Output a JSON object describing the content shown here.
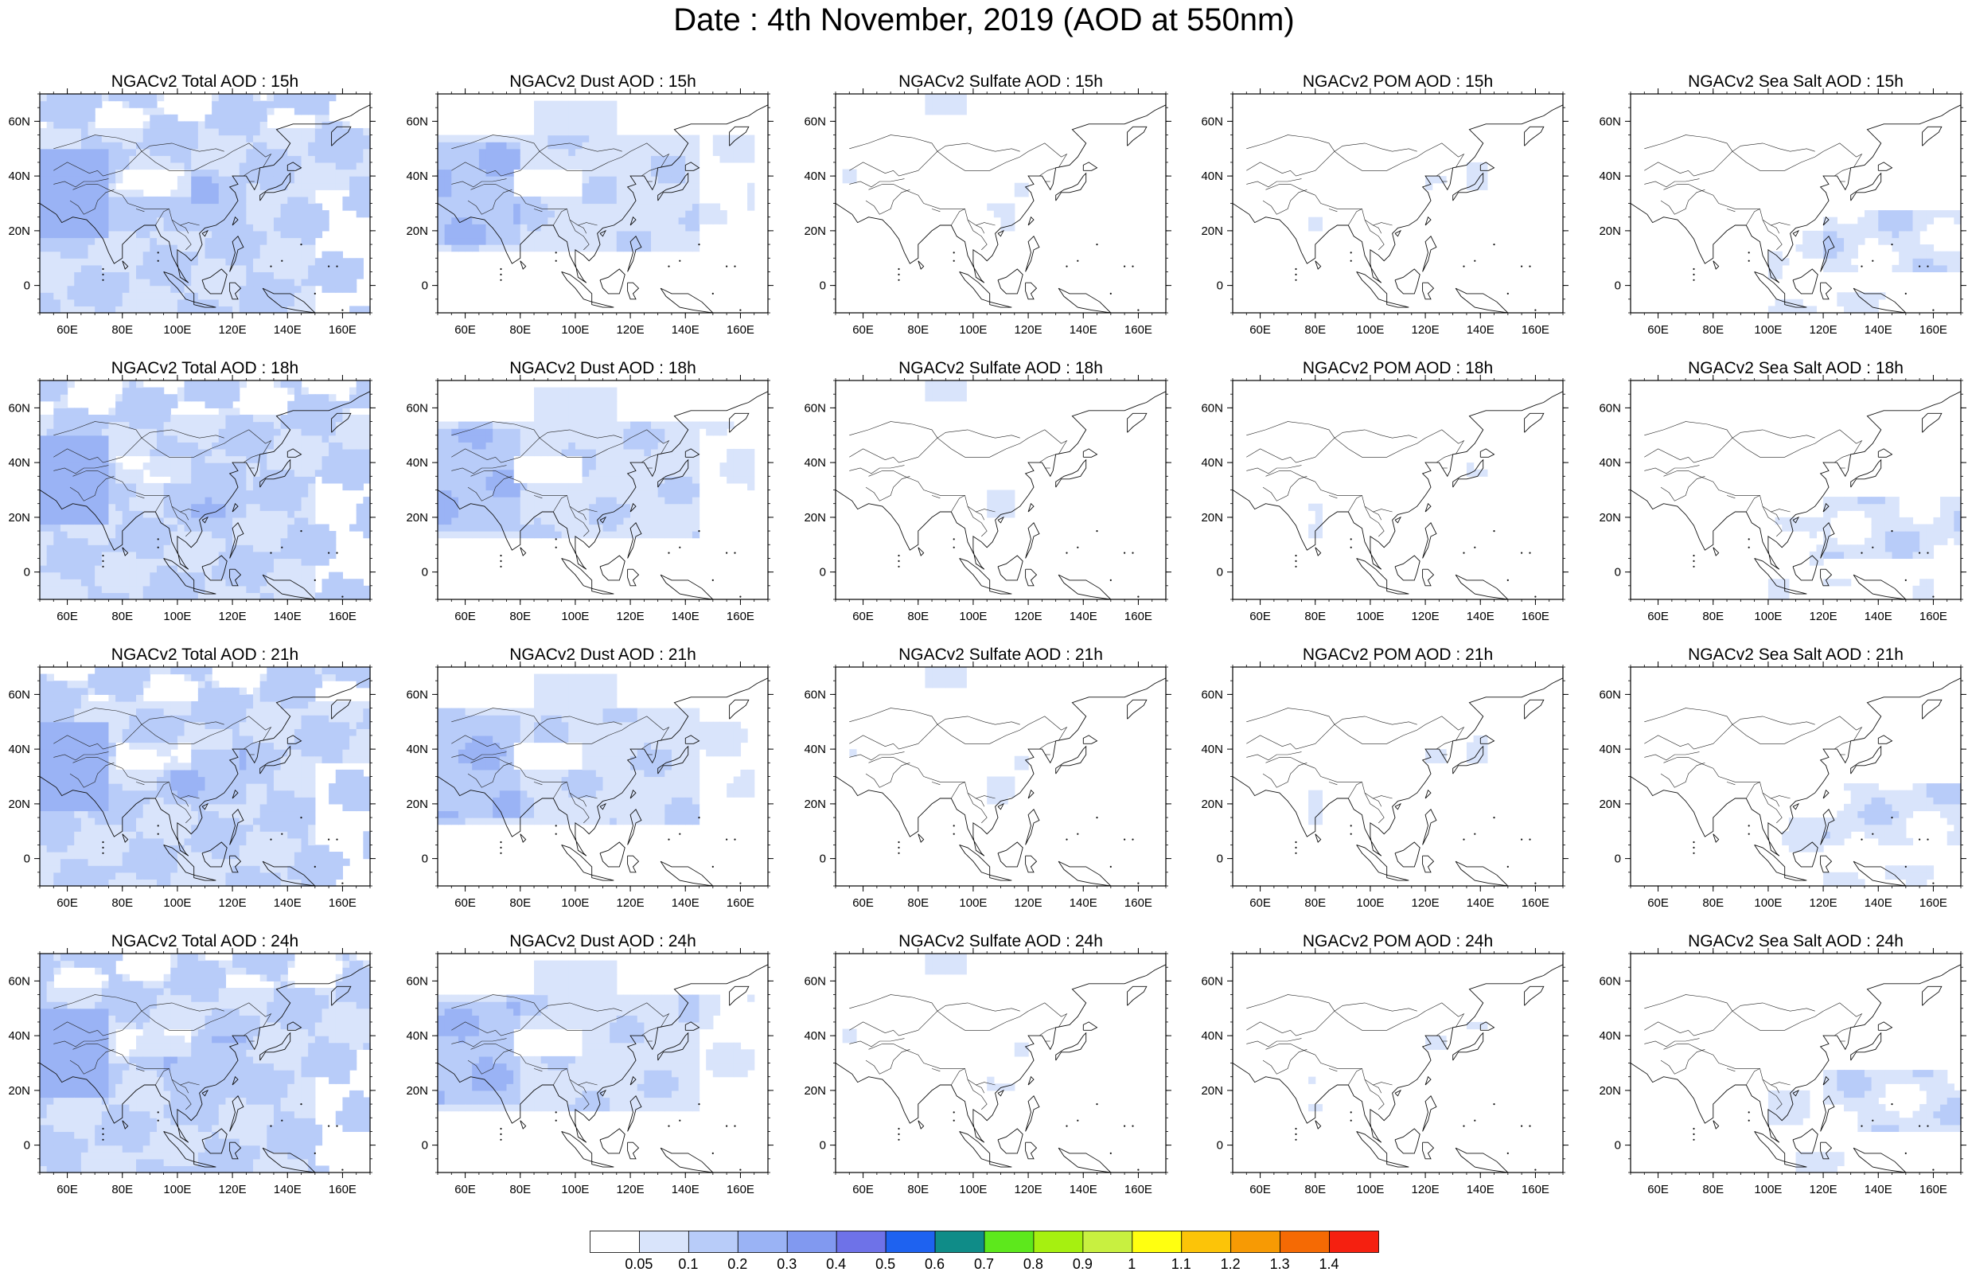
{
  "title": "Date : 4th November, 2019 (AOD at 550nm)",
  "panels": [
    {
      "title": "NGACv2 Total AOD : 15h",
      "species": "total",
      "hour": "15h"
    },
    {
      "title": "NGACv2 Dust AOD : 15h",
      "species": "dust",
      "hour": "15h"
    },
    {
      "title": "NGACv2 Sulfate AOD : 15h",
      "species": "sulfate",
      "hour": "15h"
    },
    {
      "title": "NGACv2 POM AOD : 15h",
      "species": "pom",
      "hour": "15h"
    },
    {
      "title": "NGACv2 Sea Salt AOD : 15h",
      "species": "seasalt",
      "hour": "15h"
    },
    {
      "title": "NGACv2 Total AOD : 18h",
      "species": "total",
      "hour": "18h"
    },
    {
      "title": "NGACv2 Dust AOD : 18h",
      "species": "dust",
      "hour": "18h"
    },
    {
      "title": "NGACv2 Sulfate AOD : 18h",
      "species": "sulfate",
      "hour": "18h"
    },
    {
      "title": "NGACv2 POM AOD : 18h",
      "species": "pom",
      "hour": "18h"
    },
    {
      "title": "NGACv2 Sea Salt AOD : 18h",
      "species": "seasalt",
      "hour": "18h"
    },
    {
      "title": "NGACv2 Total AOD : 21h",
      "species": "total",
      "hour": "21h"
    },
    {
      "title": "NGACv2 Dust AOD : 21h",
      "species": "dust",
      "hour": "21h"
    },
    {
      "title": "NGACv2 Sulfate AOD : 21h",
      "species": "sulfate",
      "hour": "21h"
    },
    {
      "title": "NGACv2 POM AOD : 21h",
      "species": "pom",
      "hour": "21h"
    },
    {
      "title": "NGACv2 Sea Salt AOD : 21h",
      "species": "seasalt",
      "hour": "21h"
    },
    {
      "title": "NGACv2 Total AOD : 24h",
      "species": "total",
      "hour": "24h"
    },
    {
      "title": "NGACv2 Dust AOD : 24h",
      "species": "dust",
      "hour": "24h"
    },
    {
      "title": "NGACv2 Sulfate AOD : 24h",
      "species": "sulfate",
      "hour": "24h"
    },
    {
      "title": "NGACv2 POM AOD : 24h",
      "species": "pom",
      "hour": "24h"
    },
    {
      "title": "NGACv2 Sea Salt  AOD : 24h",
      "species": "seasalt",
      "hour": "24h"
    }
  ],
  "lat_ticks": [
    "60N",
    "40N",
    "20N",
    "0"
  ],
  "lat_values": [
    60,
    40,
    20,
    0
  ],
  "lon_ticks": [
    "60E",
    "80E",
    "100E",
    "120E",
    "140E",
    "160E"
  ],
  "lon_values": [
    60,
    80,
    100,
    120,
    140,
    160
  ],
  "lon_range": [
    50,
    170
  ],
  "lat_range": [
    -10,
    70
  ],
  "colorbar": {
    "labels": [
      "0.05",
      "0.1",
      "0.2",
      "0.3",
      "0.4",
      "0.5",
      "0.6",
      "0.7",
      "0.8",
      "0.9",
      "1",
      "1.1",
      "1.2",
      "1.3",
      "1.4"
    ],
    "colors": [
      "#ffffff",
      "#d9e4fb",
      "#b8ccf9",
      "#9ab3f5",
      "#8199f0",
      "#6e72e8",
      "#1e62f0",
      "#0f8c88",
      "#5de81c",
      "#a6f010",
      "#c8f040",
      "#ffff10",
      "#fcc408",
      "#f79a04",
      "#f56a04",
      "#f52010"
    ]
  }
}
